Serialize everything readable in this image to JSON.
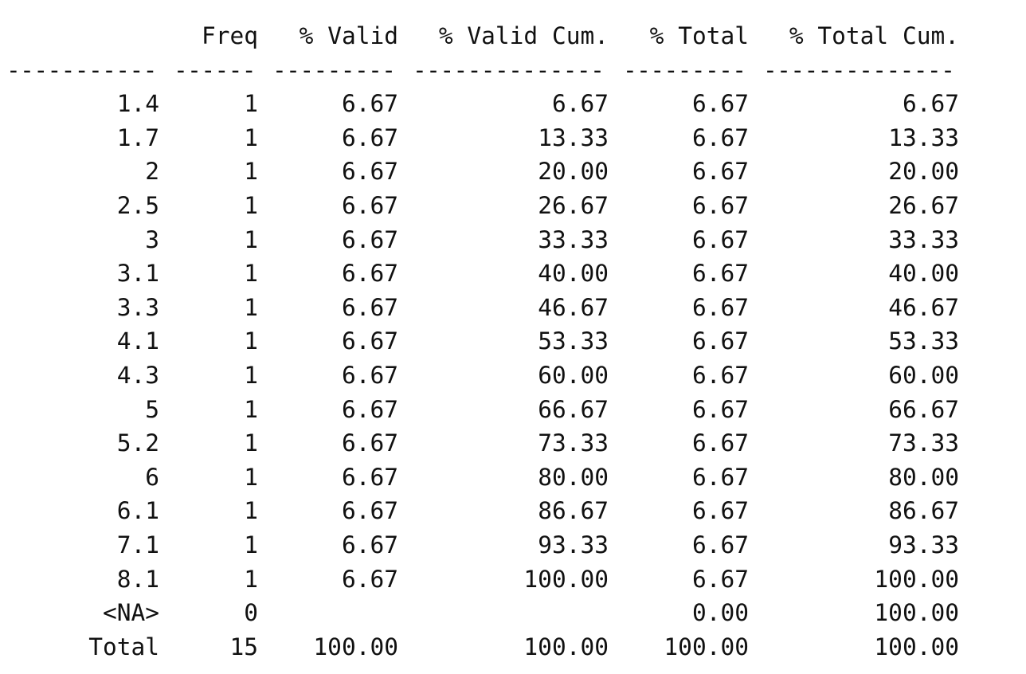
{
  "table": {
    "headers": [
      "",
      "Freq",
      "% Valid",
      "% Valid Cum.",
      "% Total",
      "% Total Cum."
    ],
    "separators": [
      "-----------",
      "------",
      "---------",
      "--------------",
      "---------",
      "--------------"
    ],
    "rows": [
      [
        "1.4",
        "1",
        "6.67",
        "6.67",
        "6.67",
        "6.67"
      ],
      [
        "1.7",
        "1",
        "6.67",
        "13.33",
        "6.67",
        "13.33"
      ],
      [
        "2",
        "1",
        "6.67",
        "20.00",
        "6.67",
        "20.00"
      ],
      [
        "2.5",
        "1",
        "6.67",
        "26.67",
        "6.67",
        "26.67"
      ],
      [
        "3",
        "1",
        "6.67",
        "33.33",
        "6.67",
        "33.33"
      ],
      [
        "3.1",
        "1",
        "6.67",
        "40.00",
        "6.67",
        "40.00"
      ],
      [
        "3.3",
        "1",
        "6.67",
        "46.67",
        "6.67",
        "46.67"
      ],
      [
        "4.1",
        "1",
        "6.67",
        "53.33",
        "6.67",
        "53.33"
      ],
      [
        "4.3",
        "1",
        "6.67",
        "60.00",
        "6.67",
        "60.00"
      ],
      [
        "5",
        "1",
        "6.67",
        "66.67",
        "6.67",
        "66.67"
      ],
      [
        "5.2",
        "1",
        "6.67",
        "73.33",
        "6.67",
        "73.33"
      ],
      [
        "6",
        "1",
        "6.67",
        "80.00",
        "6.67",
        "80.00"
      ],
      [
        "6.1",
        "1",
        "6.67",
        "86.67",
        "6.67",
        "86.67"
      ],
      [
        "7.1",
        "1",
        "6.67",
        "93.33",
        "6.67",
        "93.33"
      ],
      [
        "8.1",
        "1",
        "6.67",
        "100.00",
        "6.67",
        "100.00"
      ],
      [
        "<NA>",
        "0",
        "",
        "",
        "0.00",
        "100.00"
      ],
      [
        "Total",
        "15",
        "100.00",
        "100.00",
        "100.00",
        "100.00"
      ]
    ]
  }
}
